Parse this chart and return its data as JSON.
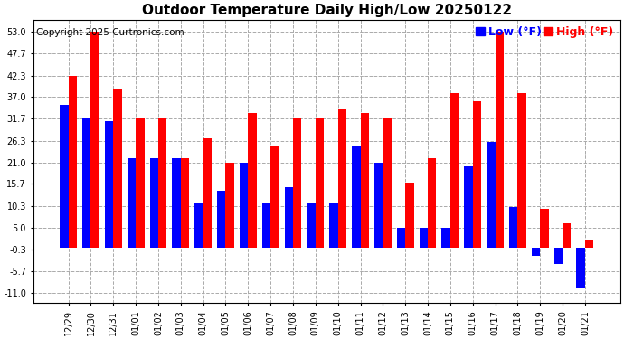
{
  "title": "Outdoor Temperature Daily High/Low 20250122",
  "copyright": "Copyright 2025 Curtronics.com",
  "legend_low": "Low (°F)",
  "legend_high": "High (°F)",
  "low_color": "#0000ff",
  "high_color": "#ff0000",
  "dates": [
    "12/29",
    "12/30",
    "12/31",
    "01/01",
    "01/02",
    "01/03",
    "01/04",
    "01/05",
    "01/06",
    "01/07",
    "01/08",
    "01/09",
    "01/10",
    "01/11",
    "01/12",
    "01/13",
    "01/14",
    "01/15",
    "01/16",
    "01/17",
    "01/18",
    "01/19",
    "01/20",
    "01/21"
  ],
  "highs": [
    42.3,
    53.0,
    39.0,
    32.0,
    32.0,
    22.0,
    27.0,
    21.0,
    33.0,
    25.0,
    32.0,
    32.0,
    34.0,
    33.0,
    32.0,
    16.0,
    22.0,
    38.0,
    36.0,
    53.0,
    38.0,
    9.5,
    6.0,
    2.0
  ],
  "lows": [
    35.0,
    32.0,
    31.0,
    22.0,
    22.0,
    22.0,
    11.0,
    14.0,
    21.0,
    11.0,
    15.0,
    11.0,
    11.0,
    25.0,
    21.0,
    5.0,
    5.0,
    5.0,
    20.0,
    26.0,
    10.0,
    -2.0,
    -4.0,
    -10.0
  ],
  "yticks": [
    -11.0,
    -5.7,
    -0.3,
    5.0,
    10.3,
    15.7,
    21.0,
    26.3,
    31.7,
    37.0,
    42.3,
    47.7,
    53.0
  ],
  "ylim": [
    -13.5,
    56.0
  ],
  "grid_color": "#aaaaaa",
  "bg_color": "#ffffff",
  "bar_width": 0.38,
  "title_fontsize": 11,
  "tick_fontsize": 7,
  "legend_fontsize": 9,
  "copyright_fontsize": 7.5
}
